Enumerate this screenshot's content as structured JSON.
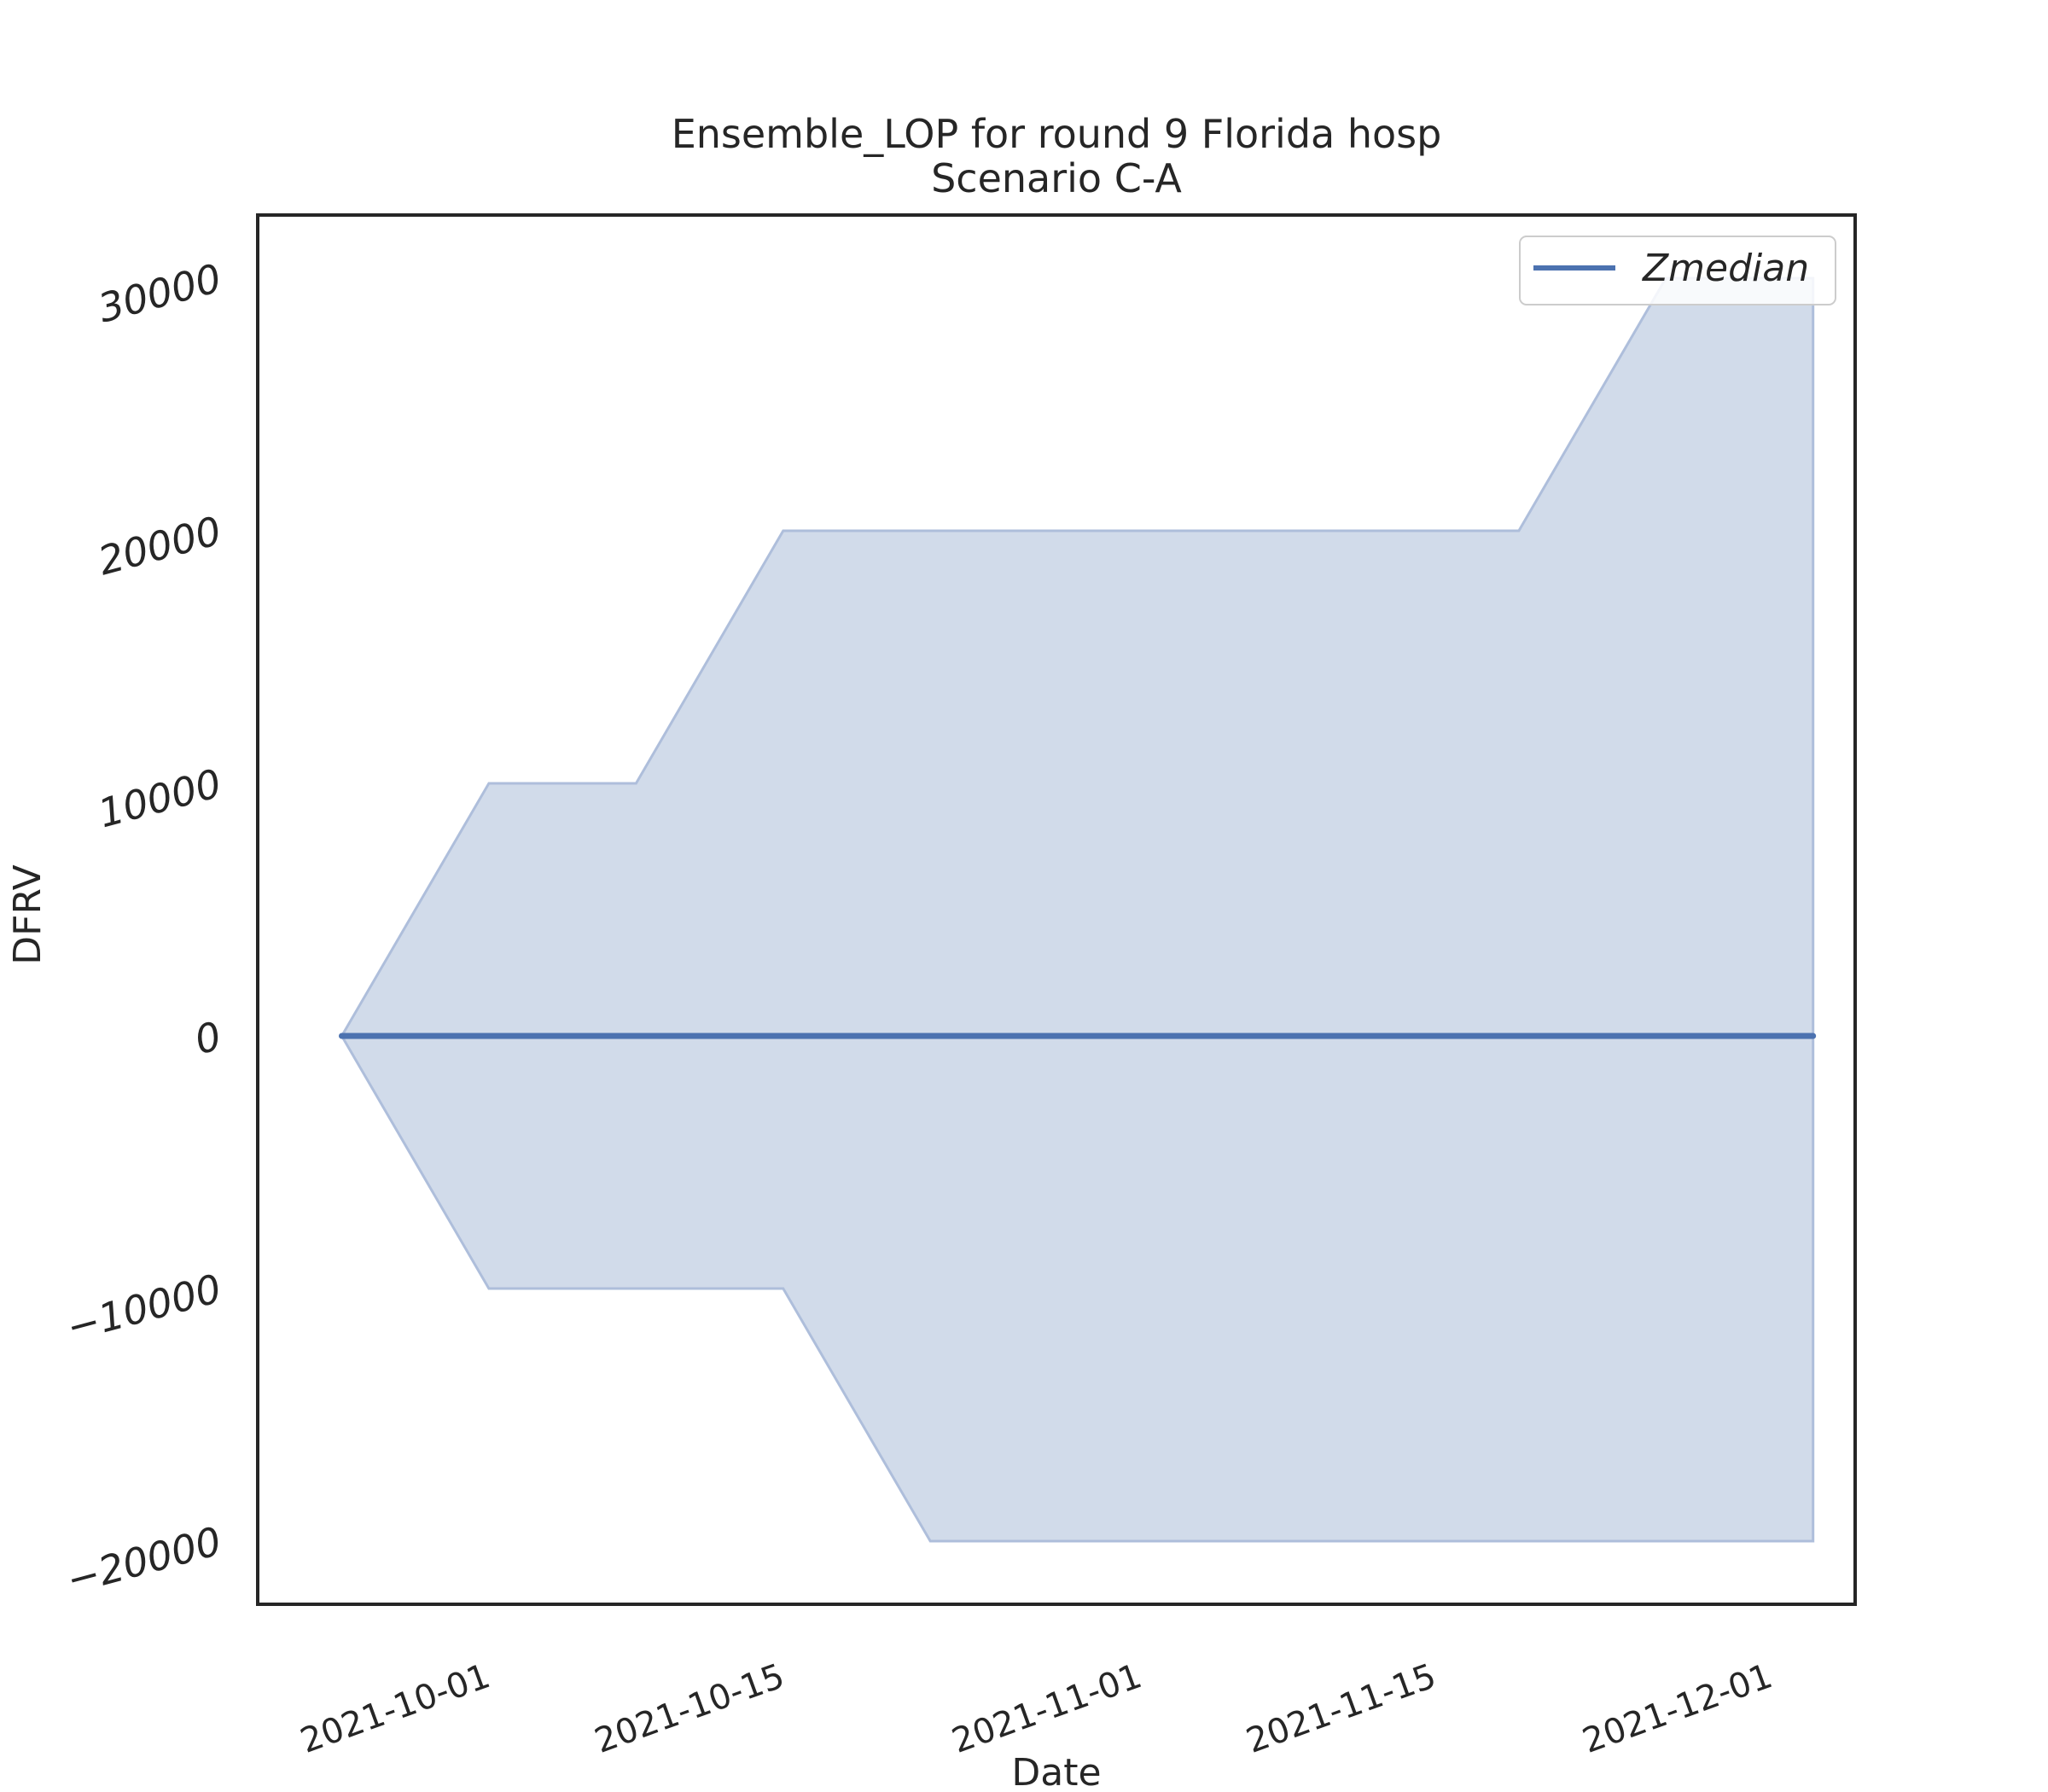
{
  "chart_data": {
    "type": "area",
    "title": "Ensemble_LOP for round 9 Florida hosp",
    "subtitle": "Scenario C-A",
    "xlabel": "Date",
    "ylabel": "DFRV",
    "x_ticks": [
      "2021-10-01",
      "2021-10-15",
      "2021-11-01",
      "2021-11-15",
      "2021-12-01"
    ],
    "y_ticks": [
      "−20000",
      "−10000",
      "0",
      "10000",
      "20000",
      "30000"
    ],
    "y_tick_values": [
      -20000,
      -10000,
      0,
      10000,
      20000,
      30000
    ],
    "ylim": [
      -22500,
      32500
    ],
    "xlim": [
      "2021-09-20",
      "2021-12-05"
    ],
    "grid": false,
    "legend_position": "top-right",
    "colors": {
      "line": "#4c72b0",
      "band": "#d1dbea",
      "band_edge": "#aebedb"
    },
    "series": [
      {
        "name": "Zmedian",
        "x": [
          "2021-09-24",
          "2021-10-01",
          "2021-10-08",
          "2021-10-15",
          "2021-10-22",
          "2021-10-29",
          "2021-11-05",
          "2021-11-12",
          "2021-11-19",
          "2021-11-26",
          "2021-12-03"
        ],
        "values": [
          0,
          0,
          0,
          0,
          0,
          0,
          0,
          0,
          0,
          0,
          0
        ]
      }
    ],
    "band": {
      "x": [
        "2021-09-24",
        "2021-10-01",
        "2021-10-08",
        "2021-10-15",
        "2021-10-22",
        "2021-10-29",
        "2021-11-05",
        "2021-11-12",
        "2021-11-19",
        "2021-11-26",
        "2021-12-03"
      ],
      "upper": [
        0,
        10000,
        10000,
        20000,
        20000,
        20000,
        20000,
        20000,
        20000,
        30000,
        30000
      ],
      "lower": [
        0,
        -10000,
        -10000,
        -10000,
        -20000,
        -20000,
        -20000,
        -20000,
        -20000,
        -20000,
        -20000
      ]
    }
  }
}
